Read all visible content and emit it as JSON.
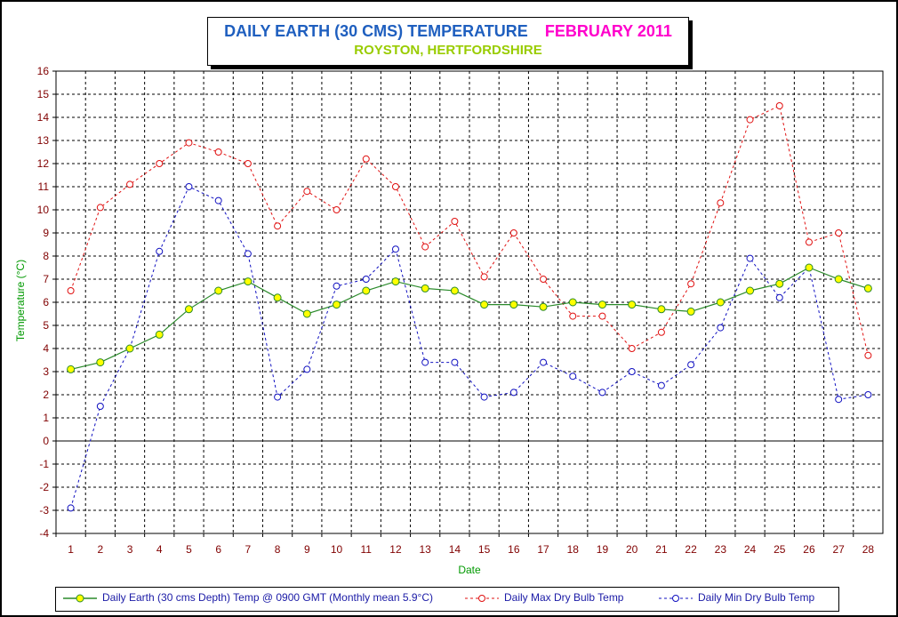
{
  "colors": {
    "earth": "#2a8a2a",
    "earth_fill": "#ffff00",
    "max": "#e01010",
    "min": "#1010c0",
    "axis_text": "#800000",
    "ylabel": "#009900",
    "xlabel": "#009900",
    "title": "#1f5fbf",
    "title_month": "#ff00cc",
    "subtitle": "#99cc00"
  },
  "title": {
    "main": "DAILY EARTH (30 CMS) TEMPERATURE",
    "month": "FEBRUARY 2011",
    "subtitle": "ROYSTON, HERTFORDSHIRE"
  },
  "chart_data": {
    "type": "line",
    "xlabel": "Date",
    "ylabel": "Temperature (°C)",
    "ylim": [
      -4,
      16
    ],
    "yticks": [
      -4,
      -3,
      -2,
      -1,
      0,
      1,
      2,
      3,
      4,
      5,
      6,
      7,
      8,
      9,
      10,
      11,
      12,
      13,
      14,
      15,
      16
    ],
    "grid": true,
    "legend_position": "bottom",
    "x": [
      1,
      2,
      3,
      4,
      5,
      6,
      7,
      8,
      9,
      10,
      11,
      12,
      13,
      14,
      15,
      16,
      17,
      18,
      19,
      20,
      21,
      22,
      23,
      24,
      25,
      26,
      27,
      28
    ],
    "series": [
      {
        "name": "Daily Earth (30 cms Depth) Temp @ 0900 GMT (Monthly mean 5.9°C)",
        "values": [
          3.1,
          3.4,
          4.0,
          4.6,
          5.7,
          6.5,
          6.9,
          6.2,
          5.5,
          5.9,
          6.5,
          6.9,
          6.6,
          6.5,
          5.9,
          5.9,
          5.8,
          6.0,
          5.9,
          5.9,
          5.7,
          5.6,
          6.0,
          6.5,
          6.8,
          7.5,
          7.0,
          6.6
        ]
      },
      {
        "name": "Daily Max Dry Bulb Temp",
        "values": [
          6.5,
          10.1,
          11.1,
          12.0,
          12.9,
          12.5,
          12.0,
          9.3,
          10.8,
          10.0,
          12.2,
          11.0,
          8.4,
          9.5,
          7.1,
          9.0,
          7.0,
          5.4,
          5.4,
          4.0,
          4.7,
          6.8,
          10.3,
          13.9,
          14.5,
          8.6,
          9.0,
          3.7
        ]
      },
      {
        "name": "Daily Min Dry Bulb Temp",
        "values": [
          -2.9,
          1.5,
          4.0,
          8.2,
          11.0,
          10.4,
          8.1,
          1.9,
          3.1,
          6.7,
          7.0,
          8.3,
          3.4,
          3.4,
          1.9,
          2.1,
          3.4,
          2.8,
          2.1,
          3.0,
          2.4,
          3.3,
          4.9,
          7.9,
          6.2,
          7.5,
          1.8,
          2.0
        ]
      }
    ]
  }
}
